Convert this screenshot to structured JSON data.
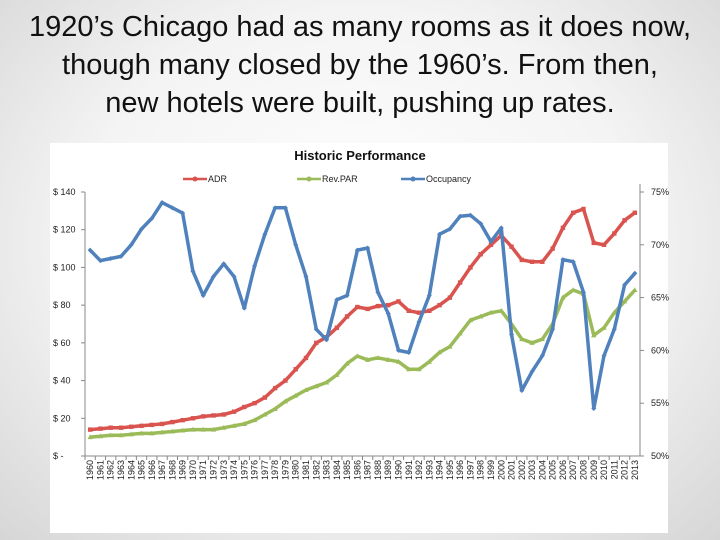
{
  "slide": {
    "title": "1920’s Chicago had as many rooms as it does now,\nthough many closed by the 1960’s.  From then,\nnew hotels were built, pushing up rates."
  },
  "chart_data": {
    "type": "line",
    "title": "Historic Performance",
    "x": [
      "1960",
      "1961",
      "1962",
      "1963",
      "1964",
      "1965",
      "1966",
      "1967",
      "1968",
      "1969",
      "1970",
      "1971",
      "1972",
      "1973",
      "1974",
      "1975",
      "1976",
      "1977",
      "1978",
      "1979",
      "1980",
      "1981",
      "1982",
      "1983",
      "1984",
      "1985",
      "1986",
      "1987",
      "1988",
      "1989",
      "1990",
      "1991",
      "1992",
      "1993",
      "1994",
      "1995",
      "1996",
      "1997",
      "1998",
      "1999",
      "2000",
      "2001",
      "2002",
      "2003",
      "2004",
      "2005",
      "2006",
      "2007",
      "2008",
      "2009",
      "2010",
      "2011",
      "2012",
      "2013"
    ],
    "left_axis": {
      "ylim": [
        0,
        140
      ],
      "ticks": [
        0,
        20,
        40,
        60,
        80,
        100,
        120,
        140
      ],
      "tick_labels": [
        "$ -",
        "$ 20",
        "$ 40",
        "$ 60",
        "$ 80",
        "$ 100",
        "$ 120",
        "$ 140"
      ]
    },
    "right_axis": {
      "ylim": [
        50,
        75
      ],
      "ticks": [
        50,
        55,
        60,
        65,
        70,
        75
      ],
      "tick_labels": [
        "50%",
        "55%",
        "60%",
        "65%",
        "70%",
        "75%"
      ]
    },
    "legend_position": "top",
    "series": [
      {
        "name": "ADR",
        "axis": "left",
        "color": "#d9534f",
        "values": [
          14,
          14.5,
          15,
          15,
          15.5,
          16,
          16.5,
          17,
          18,
          19,
          20,
          21,
          21.5,
          22,
          23.5,
          26,
          28,
          31,
          36,
          40,
          46,
          52,
          60,
          63,
          68,
          74,
          79,
          78,
          79.5,
          80,
          82,
          77,
          76,
          77,
          80,
          84,
          92,
          100,
          107,
          112,
          117,
          111,
          104,
          103,
          103,
          110,
          121,
          129,
          131,
          113,
          112,
          118,
          125,
          129
        ]
      },
      {
        "name": "Rev.PAR",
        "axis": "left",
        "color": "#9bbb59",
        "values": [
          10,
          10.5,
          11,
          11,
          11.5,
          12,
          12,
          12.5,
          13,
          13.5,
          14,
          14,
          14,
          15,
          16,
          17,
          19,
          22,
          25,
          29,
          32,
          35,
          37,
          39,
          43,
          49,
          53,
          51,
          52,
          51,
          50,
          46,
          46,
          50,
          55,
          58,
          65,
          72,
          74,
          76,
          77,
          70,
          62,
          60,
          62,
          70,
          84,
          88,
          86,
          64,
          68,
          76,
          82,
          88
        ]
      },
      {
        "name": "Occupancy",
        "axis": "right",
        "color": "#4f81bd",
        "values": [
          69.5,
          68.5,
          68.7,
          68.9,
          70,
          71.5,
          72.5,
          74,
          73.5,
          73,
          67.5,
          65.2,
          67,
          68.2,
          67,
          64,
          68,
          71,
          73.5,
          73.5,
          70,
          67,
          62,
          61,
          64.8,
          65.2,
          69.5,
          69.7,
          65.5,
          63.5,
          60,
          59.8,
          62.7,
          65.2,
          71,
          71.5,
          72.7,
          72.8,
          72,
          70.3,
          71.6,
          61.5,
          56.2,
          58,
          59.5,
          62,
          68.6,
          68.4,
          65.5,
          54.5,
          59.5,
          62,
          66.2,
          67.3
        ]
      }
    ]
  }
}
